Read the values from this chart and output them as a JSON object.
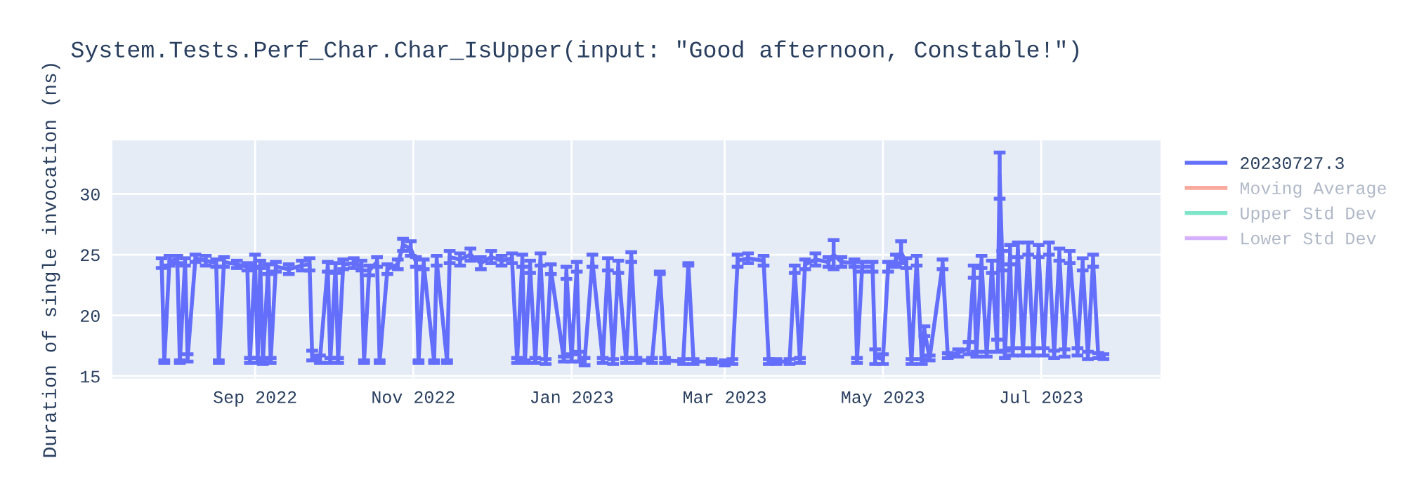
{
  "chart_data": {
    "type": "line",
    "title": "System.Tests.Perf_Char.Char_IsUpper(input: \"Good afternoon, Constable!\")",
    "ylabel": "Duration of single invocation (ns)",
    "x": [
      "2022-07-27",
      "2022-07-28",
      "2022-07-30",
      "2022-08-02",
      "2022-08-03",
      "2022-08-05",
      "2022-08-06",
      "2022-08-09",
      "2022-08-13",
      "2022-08-17",
      "2022-08-18",
      "2022-08-20",
      "2022-08-25",
      "2022-08-29",
      "2022-08-30",
      "2022-09-01",
      "2022-09-02",
      "2022-09-03",
      "2022-09-04",
      "2022-09-06",
      "2022-09-07",
      "2022-09-09",
      "2022-09-14",
      "2022-09-19",
      "2022-09-22",
      "2022-09-23",
      "2022-09-26",
      "2022-09-29",
      "2022-09-30",
      "2022-10-02",
      "2022-10-03",
      "2022-10-05",
      "2022-10-09",
      "2022-10-12",
      "2022-10-13",
      "2022-10-15",
      "2022-10-18",
      "2022-10-19",
      "2022-10-22",
      "2022-10-26",
      "2022-10-28",
      "2022-10-31",
      "2022-11-02",
      "2022-11-03",
      "2022-11-05",
      "2022-11-09",
      "2022-11-10",
      "2022-11-14",
      "2022-11-15",
      "2022-11-19",
      "2022-11-23",
      "2022-11-27",
      "2022-12-01",
      "2022-12-05",
      "2022-12-09",
      "2022-12-11",
      "2022-12-13",
      "2022-12-14",
      "2022-12-16",
      "2022-12-18",
      "2022-12-20",
      "2022-12-22",
      "2022-12-24",
      "2022-12-29",
      "2022-12-30",
      "2023-01-01",
      "2023-01-03",
      "2023-01-04",
      "2023-01-06",
      "2023-01-09",
      "2023-01-13",
      "2023-01-15",
      "2023-01-17",
      "2023-01-19",
      "2023-01-22",
      "2023-01-24",
      "2023-01-26",
      "2023-02-01",
      "2023-02-04",
      "2023-02-06",
      "2023-02-13",
      "2023-02-15",
      "2023-02-17",
      "2023-02-24",
      "2023-03-01",
      "2023-03-04",
      "2023-03-06",
      "2023-03-10",
      "2023-03-16",
      "2023-03-18",
      "2023-03-21",
      "2023-03-26",
      "2023-03-28",
      "2023-03-30",
      "2023-04-01",
      "2023-04-05",
      "2023-04-10",
      "2023-04-12",
      "2023-04-15",
      "2023-04-20",
      "2023-04-21",
      "2023-04-23",
      "2023-04-27",
      "2023-04-28",
      "2023-05-01",
      "2023-05-03",
      "2023-05-06",
      "2023-05-08",
      "2023-05-10",
      "2023-05-12",
      "2023-05-14",
      "2023-05-16",
      "2023-05-17",
      "2023-05-19",
      "2023-05-24",
      "2023-05-26",
      "2023-05-30",
      "2023-06-03",
      "2023-06-05",
      "2023-06-06",
      "2023-06-08",
      "2023-06-10",
      "2023-06-12",
      "2023-06-14",
      "2023-06-15",
      "2023-06-16",
      "2023-06-17",
      "2023-06-19",
      "2023-06-20",
      "2023-06-22",
      "2023-06-24",
      "2023-06-26",
      "2023-06-28",
      "2023-06-30",
      "2023-07-02",
      "2023-07-04",
      "2023-07-06",
      "2023-07-08",
      "2023-07-10",
      "2023-07-12",
      "2023-07-15",
      "2023-07-17",
      "2023-07-19",
      "2023-07-21",
      "2023-07-23",
      "2023-07-25"
    ],
    "series": [
      {
        "name": "20230727.3",
        "color": "#636efa",
        "values": [
          24.3,
          16.2,
          24.5,
          24.6,
          16.2,
          24.4,
          16.5,
          24.7,
          24.5,
          24.3,
          16.2,
          24.4,
          24.2,
          24.0,
          16.3,
          24.5,
          16.3,
          24.2,
          16.2,
          23.8,
          16.3,
          24.0,
          23.8,
          24.1,
          24.2,
          16.7,
          16.4,
          24.0,
          16.3,
          23.9,
          16.3,
          24.2,
          24.3,
          24.1,
          16.2,
          23.7,
          24.4,
          16.2,
          23.8,
          24.2,
          25.8,
          25.5,
          24.4,
          16.2,
          24.2,
          16.2,
          24.5,
          16.2,
          24.8,
          24.6,
          25.0,
          24.3,
          24.8,
          24.5,
          24.7,
          16.3,
          24.5,
          16.2,
          24.0,
          16.3,
          24.6,
          16.2,
          23.8,
          16.4,
          23.5,
          16.5,
          24.0,
          16.6,
          16.2,
          24.5,
          16.3,
          24.2,
          16.2,
          24.0,
          16.3,
          24.8,
          16.3,
          16.3,
          23.5,
          16.3,
          16.2,
          24.2,
          16.2,
          16.2,
          16.1,
          16.2,
          24.5,
          24.7,
          24.5,
          16.2,
          16.2,
          16.2,
          23.8,
          16.3,
          24.2,
          24.6,
          24.4,
          25.0,
          24.4,
          24.3,
          16.3,
          24.0,
          24.0,
          16.6,
          16.4,
          24.0,
          24.5,
          25.2,
          24.3,
          16.2,
          24.5,
          16.2,
          18.7,
          16.5,
          24.2,
          16.7,
          16.9,
          17.3,
          23.6,
          16.8,
          24.4,
          16.8,
          24.0,
          17.5,
          31.5,
          24.5,
          16.8,
          25.0,
          17.0,
          25.4,
          17.0,
          25.5,
          17.0,
          25.3,
          17.0,
          25.5,
          16.8,
          25.0,
          16.9,
          24.8,
          17.0,
          24.2,
          16.7,
          24.5,
          16.7,
          16.6
        ],
        "errors": [
          0.4,
          0.1,
          0.4,
          0.3,
          0.1,
          0.3,
          0.3,
          0.3,
          0.4,
          0.3,
          0.1,
          0.4,
          0.3,
          0.3,
          0.2,
          0.5,
          0.2,
          0.3,
          0.2,
          0.4,
          0.2,
          0.4,
          0.4,
          0.4,
          0.5,
          0.4,
          0.3,
          0.4,
          0.2,
          0.4,
          0.2,
          0.4,
          0.4,
          0.4,
          0.1,
          0.4,
          0.4,
          0.1,
          0.4,
          0.4,
          0.5,
          0.6,
          0.4,
          0.1,
          0.4,
          0.1,
          0.4,
          0.1,
          0.5,
          0.5,
          0.5,
          0.5,
          0.5,
          0.4,
          0.4,
          0.2,
          0.5,
          0.1,
          0.5,
          0.2,
          0.5,
          0.2,
          0.4,
          0.2,
          0.5,
          0.3,
          0.4,
          0.4,
          0.3,
          0.5,
          0.2,
          0.5,
          0.2,
          0.5,
          0.2,
          0.4,
          0.2,
          0.2,
          0.1,
          0.2,
          0.2,
          0.1,
          0.2,
          0.2,
          0.2,
          0.2,
          0.5,
          0.4,
          0.4,
          0.2,
          0.2,
          0.2,
          0.3,
          0.2,
          0.4,
          0.5,
          0.4,
          1.2,
          0.4,
          0.3,
          0.2,
          0.4,
          0.4,
          0.6,
          0.4,
          0.4,
          0.5,
          0.9,
          0.4,
          0.2,
          0.4,
          0.2,
          0.4,
          0.2,
          0.4,
          0.2,
          0.3,
          0.5,
          0.5,
          0.2,
          0.5,
          0.2,
          0.5,
          0.5,
          1.9,
          0.8,
          0.3,
          0.8,
          0.3,
          0.6,
          0.3,
          0.5,
          0.3,
          0.5,
          0.3,
          0.5,
          0.3,
          0.5,
          0.3,
          0.5,
          0.3,
          0.5,
          0.3,
          0.5,
          0.2,
          0.2
        ]
      },
      {
        "name": "Moving Average",
        "color": "#ef553b",
        "values": [
          null,
          null,
          null,
          null,
          null,
          null,
          null,
          null,
          null,
          null,
          null,
          null,
          null,
          null,
          null,
          null,
          null,
          null,
          null,
          null,
          null,
          null,
          null,
          null,
          null,
          null,
          null,
          null,
          null,
          null,
          null,
          null,
          null,
          null,
          null,
          null,
          null,
          null,
          null,
          null,
          null,
          null,
          null,
          null,
          null,
          null,
          null,
          null,
          null,
          null,
          null,
          null,
          null,
          null,
          null,
          null,
          null,
          null,
          null,
          null,
          null,
          null,
          null,
          null,
          null,
          null,
          null,
          null,
          null,
          null,
          null,
          null,
          null,
          null,
          null,
          null,
          null,
          null,
          null,
          null,
          null,
          null,
          null,
          null,
          null,
          null,
          null,
          null,
          null,
          null,
          null,
          null,
          null,
          null,
          null,
          null,
          null,
          null,
          null,
          null,
          null,
          null,
          null,
          null,
          null,
          null,
          null,
          null,
          null,
          null,
          null,
          null,
          null,
          null,
          null,
          null,
          null,
          null,
          null,
          null,
          null,
          null,
          null,
          null,
          null,
          null,
          null,
          null,
          null,
          null,
          null,
          null,
          null,
          null,
          null,
          null,
          null,
          null,
          null,
          null,
          null,
          null,
          null,
          null,
          null,
          null
        ]
      },
      {
        "name": "Upper Std Dev",
        "color": "#00cc96",
        "values": [
          null,
          null,
          null,
          null,
          null,
          null,
          null,
          null,
          null,
          null,
          null,
          null,
          null,
          null,
          null,
          null,
          null,
          null,
          null,
          null,
          null,
          null,
          null,
          null,
          null,
          null,
          null,
          null,
          null,
          null,
          null,
          null,
          null,
          null,
          null,
          null,
          null,
          null,
          null,
          null,
          null,
          null,
          null,
          null,
          null,
          null,
          null,
          null,
          null,
          null,
          null,
          null,
          null,
          null,
          null,
          null,
          null,
          null,
          null,
          null,
          null,
          null,
          null,
          null,
          null,
          null,
          null,
          null,
          null,
          null,
          null,
          null,
          null,
          null,
          null,
          null,
          null,
          null,
          null,
          null,
          null,
          null,
          null,
          null,
          null,
          null,
          null,
          null,
          null,
          null,
          null,
          null,
          null,
          null,
          null,
          null,
          null,
          null,
          null,
          null,
          null,
          null,
          null,
          null,
          null,
          null,
          null,
          null,
          null,
          null,
          null,
          null,
          null,
          null,
          null,
          null,
          null,
          null,
          null,
          null,
          null,
          null,
          null,
          null,
          null,
          null,
          null,
          null,
          null,
          null,
          null,
          null,
          null,
          null,
          null,
          null,
          null,
          null,
          null,
          null,
          null,
          null,
          null,
          null,
          null,
          null
        ]
      },
      {
        "name": "Lower Std Dev",
        "color": "#ab63fa",
        "values": [
          null,
          null,
          null,
          null,
          null,
          null,
          null,
          null,
          null,
          null,
          null,
          null,
          null,
          null,
          null,
          null,
          null,
          null,
          null,
          null,
          null,
          null,
          null,
          null,
          null,
          null,
          null,
          null,
          null,
          null,
          null,
          null,
          null,
          null,
          null,
          null,
          null,
          null,
          null,
          null,
          null,
          null,
          null,
          null,
          null,
          null,
          null,
          null,
          null,
          null,
          null,
          null,
          null,
          null,
          null,
          null,
          null,
          null,
          null,
          null,
          null,
          null,
          null,
          null,
          null,
          null,
          null,
          null,
          null,
          null,
          null,
          null,
          null,
          null,
          null,
          null,
          null,
          null,
          null,
          null,
          null,
          null,
          null,
          null,
          null,
          null,
          null,
          null,
          null,
          null,
          null,
          null,
          null,
          null,
          null,
          null,
          null,
          null,
          null,
          null,
          null,
          null,
          null,
          null,
          null,
          null,
          null,
          null,
          null,
          null,
          null,
          null,
          null,
          null,
          null,
          null,
          null,
          null,
          null,
          null,
          null,
          null,
          null,
          null,
          null,
          null,
          null,
          null,
          null,
          null,
          null,
          null,
          null,
          null,
          null,
          null,
          null,
          null,
          null,
          null,
          null,
          null,
          null,
          null,
          null,
          null
        ]
      }
    ],
    "xlim": [
      "2022-07-08",
      "2023-08-16"
    ],
    "xticks": [
      {
        "value": "2022-09-01",
        "label": "Sep 2022"
      },
      {
        "value": "2022-11-01",
        "label": "Nov 2022"
      },
      {
        "value": "2023-01-01",
        "label": "Jan 2023"
      },
      {
        "value": "2023-03-01",
        "label": "Mar 2023"
      },
      {
        "value": "2023-05-01",
        "label": "May 2023"
      },
      {
        "value": "2023-07-01",
        "label": "Jul 2023"
      }
    ],
    "ylim": [
      14.8,
      34.4
    ],
    "yticks": [
      15,
      20,
      25,
      30
    ],
    "grid": true,
    "legend": "right",
    "marker": "none",
    "line_style": "solid"
  }
}
